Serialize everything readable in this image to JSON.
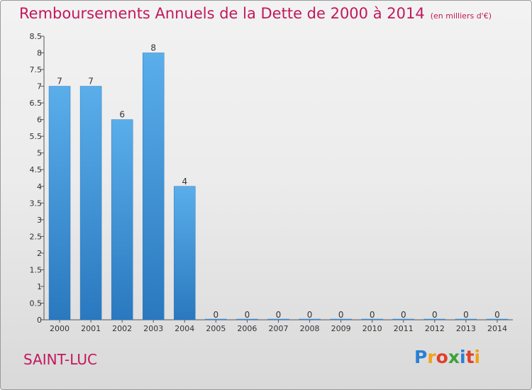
{
  "title": "Remboursements Annuels de la Dette de 2000 à 2014",
  "unit": "(en milliers d'€)",
  "commune": "SAINT-LUC",
  "logo": {
    "text": "Proxiti",
    "letters": [
      {
        "ch": "P",
        "color": "#2a7fd4"
      },
      {
        "ch": "r",
        "color": "#f0a21a"
      },
      {
        "ch": "o",
        "color": "#e0402a"
      },
      {
        "ch": "x",
        "color": "#3aa23a"
      },
      {
        "ch": "i",
        "color": "#2a7fd4"
      },
      {
        "ch": "t",
        "color": "#e0402a"
      },
      {
        "ch": "i",
        "color": "#f0a21a"
      }
    ]
  },
  "colors": {
    "title": "#c2185b",
    "bar_light": "#5aaeea",
    "bar_dark": "#2a78bf",
    "axis": "#555555"
  },
  "chart_data": {
    "type": "bar",
    "categories": [
      "2000",
      "2001",
      "2002",
      "2003",
      "2004",
      "2005",
      "2006",
      "2007",
      "2008",
      "2009",
      "2010",
      "2011",
      "2012",
      "2013",
      "2014"
    ],
    "values": [
      7,
      7,
      6,
      8,
      4,
      0,
      0,
      0,
      0,
      0,
      0,
      0,
      0,
      0,
      0
    ],
    "value_labels": [
      "7",
      "7",
      "6",
      "8",
      "4",
      "0",
      "0",
      "0",
      "0",
      "0",
      "0",
      "0",
      "0",
      "0",
      "0"
    ],
    "ylim": [
      0,
      8.5
    ],
    "yticks": [
      0,
      0.5,
      1,
      1.5,
      2,
      2.5,
      3,
      3.5,
      4,
      4.5,
      5,
      5.5,
      6,
      6.5,
      7,
      7.5,
      8,
      8.5
    ],
    "ytick_labels": [
      "0",
      "0.5",
      "1",
      "1.5",
      "2",
      "2.5",
      "3",
      "3.5",
      "4",
      "4.5",
      "5",
      "5.5",
      "6",
      "6.5",
      "7",
      "7.5",
      "8",
      "8.5"
    ],
    "grid": false
  }
}
